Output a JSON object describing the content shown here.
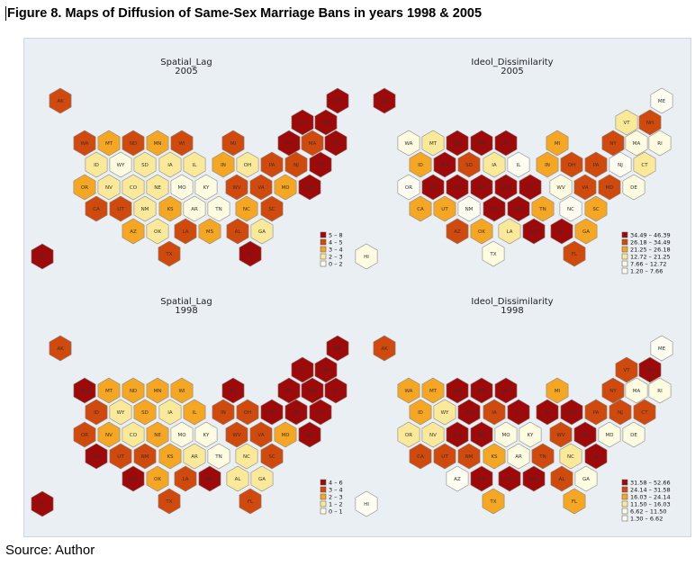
{
  "figure_title": "Figure 8. Maps of Diffusion of Same-Sex Marriage Bans in years 1998 & 2005",
  "source": "Source: Author",
  "colors": {
    "c0": "#fdfbe0",
    "c1": "#fbe99a",
    "c2": "#f5a623",
    "c3": "#cf4a0c",
    "c4": "#9e0a09",
    "background": "#e9eff2",
    "hex_stroke": "#888888"
  },
  "states": [
    {
      "abbr": "AK"
    },
    {
      "abbr": "ME"
    },
    {
      "abbr": "VT"
    },
    {
      "abbr": "NH"
    },
    {
      "abbr": "WA"
    },
    {
      "abbr": "MT"
    },
    {
      "abbr": "ND"
    },
    {
      "abbr": "MN"
    },
    {
      "abbr": "WI"
    },
    {
      "abbr": "MI"
    },
    {
      "abbr": "NY"
    },
    {
      "abbr": "MA"
    },
    {
      "abbr": "RI"
    },
    {
      "abbr": "ID"
    },
    {
      "abbr": "WY"
    },
    {
      "abbr": "SD"
    },
    {
      "abbr": "IA"
    },
    {
      "abbr": "IL"
    },
    {
      "abbr": "IN"
    },
    {
      "abbr": "OH"
    },
    {
      "abbr": "PA"
    },
    {
      "abbr": "NJ"
    },
    {
      "abbr": "CT"
    },
    {
      "abbr": "OR"
    },
    {
      "abbr": "NV"
    },
    {
      "abbr": "CO"
    },
    {
      "abbr": "NE"
    },
    {
      "abbr": "MO"
    },
    {
      "abbr": "KY"
    },
    {
      "abbr": "WV"
    },
    {
      "abbr": "VA"
    },
    {
      "abbr": "MD"
    },
    {
      "abbr": "DE"
    },
    {
      "abbr": "CA"
    },
    {
      "abbr": "UT"
    },
    {
      "abbr": "NM"
    },
    {
      "abbr": "KS"
    },
    {
      "abbr": "AR"
    },
    {
      "abbr": "TN"
    },
    {
      "abbr": "NC"
    },
    {
      "abbr": "SC"
    },
    {
      "abbr": "AZ"
    },
    {
      "abbr": "OK"
    },
    {
      "abbr": "LA"
    },
    {
      "abbr": "MS"
    },
    {
      "abbr": "AL"
    },
    {
      "abbr": "GA"
    },
    {
      "abbr": "TX"
    },
    {
      "abbr": "FL"
    },
    {
      "abbr": "HI"
    }
  ],
  "panels": [
    {
      "title_line1": "Spatial_Lag",
      "title_line2": "2005",
      "legend": [
        "5 – 8",
        "4 – 5",
        "3 – 4",
        "2 – 3",
        "0 – 2"
      ],
      "classes": [
        1,
        0,
        0,
        0,
        1,
        2,
        1,
        2,
        1,
        1,
        0,
        1,
        0,
        3,
        4,
        3,
        3,
        3,
        2,
        3,
        1,
        1,
        0,
        2,
        3,
        3,
        3,
        4,
        4,
        1,
        1,
        2,
        0,
        1,
        1,
        3,
        2,
        4,
        4,
        2,
        1,
        2,
        3,
        1,
        2,
        1,
        3,
        1,
        0,
        0
      ]
    },
    {
      "title_line1": "Ideol_Dissimilarity",
      "title_line2": "2005",
      "legend": [
        "34.49 – 46.39",
        "26.18 – 34.49",
        "21.25 – 26.18",
        "12.72 – 21.25",
        "7.66 – 12.72",
        "1.20 – 7.66"
      ],
      "classes": [
        0,
        5,
        3,
        1,
        4,
        3,
        0,
        0,
        0,
        2,
        1,
        4,
        4,
        2,
        0,
        1,
        3,
        5,
        2,
        1,
        1,
        5,
        3,
        5,
        0,
        0,
        0,
        0,
        0,
        4,
        1,
        1,
        4,
        2,
        2,
        5,
        0,
        0,
        2,
        5,
        2,
        1,
        2,
        3,
        0,
        0,
        2,
        4,
        1,
        4
      ]
    },
    {
      "title_line1": "Spatial_Lag",
      "title_line2": "1998",
      "legend": [
        "4 – 6",
        "3 – 4",
        "2 – 3",
        "1 – 2",
        "0 – 1"
      ],
      "classes": [
        1,
        0,
        0,
        0,
        0,
        2,
        2,
        2,
        2,
        0,
        0,
        0,
        0,
        1,
        3,
        2,
        3,
        2,
        1,
        1,
        0,
        0,
        0,
        1,
        2,
        3,
        2,
        4,
        4,
        1,
        1,
        2,
        0,
        0,
        1,
        1,
        2,
        3,
        4,
        3,
        1,
        0,
        2,
        1,
        0,
        3,
        3,
        1,
        1,
        0
      ]
    },
    {
      "title_line1": "Ideol_Dissimilarity",
      "title_line2": "1998",
      "legend": [
        "31.58 – 52.66",
        "24.14 – 31.58",
        "16.03 – 24.14",
        "11.50 – 16.03",
        "6.62 – 11.50",
        "1.30 – 6.62"
      ],
      "classes": [
        1,
        5,
        1,
        0,
        2,
        2,
        0,
        0,
        0,
        2,
        1,
        4,
        4,
        2,
        3,
        0,
        1,
        0,
        0,
        0,
        1,
        1,
        1,
        3,
        3,
        0,
        0,
        4,
        4,
        1,
        0,
        4,
        4,
        1,
        1,
        1,
        2,
        4,
        1,
        3,
        0,
        5,
        0,
        0,
        0,
        1,
        4,
        2,
        2,
        5
      ]
    }
  ]
}
